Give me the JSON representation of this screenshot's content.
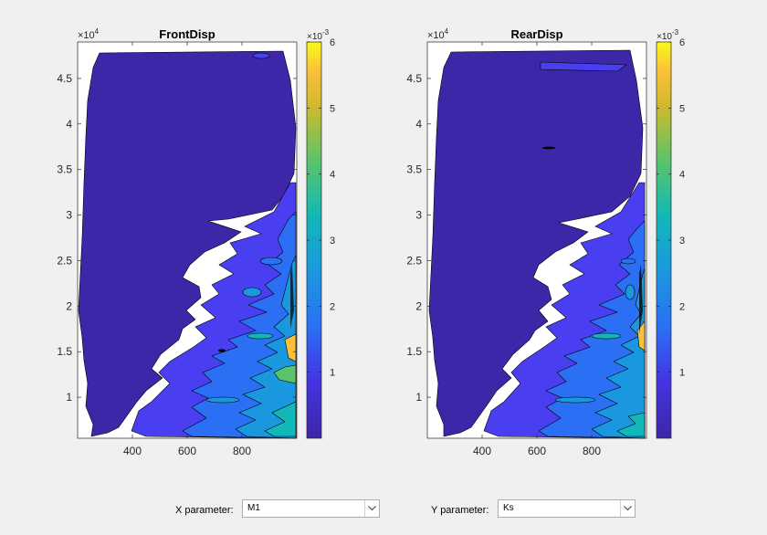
{
  "controls": {
    "x_param_label": "X parameter:",
    "x_param_value": "M1",
    "y_param_label": "Y parameter:",
    "y_param_value": "Ks"
  },
  "chart_data": [
    {
      "type": "filled-contour",
      "title": "FrontDisp",
      "xlim": [
        200,
        1000
      ],
      "ylim": [
        5500,
        49000
      ],
      "x_ticks": [
        400,
        600,
        800
      ],
      "y_ticks": [
        10000,
        15000,
        20000,
        25000,
        30000,
        35000,
        40000,
        45000
      ],
      "y_tick_labels": [
        "1",
        "1.5",
        "2",
        "2.5",
        "3",
        "3.5",
        "4",
        "4.5"
      ],
      "y_exponent": "×10^4",
      "colorbar": {
        "range": [
          0,
          0.006
        ],
        "ticks": [
          0.001,
          0.002,
          0.003,
          0.004,
          0.005,
          0.006
        ],
        "tick_labels": [
          "1",
          "2",
          "3",
          "4",
          "5",
          "6"
        ],
        "exponent": "×10^-3",
        "colormap": "parula"
      }
    },
    {
      "type": "filled-contour",
      "title": "RearDisp",
      "xlim": [
        200,
        1000
      ],
      "ylim": [
        5500,
        49000
      ],
      "x_ticks": [
        400,
        600,
        800
      ],
      "y_ticks": [
        10000,
        15000,
        20000,
        25000,
        30000,
        35000,
        40000,
        45000
      ],
      "y_tick_labels": [
        "1",
        "1.5",
        "2",
        "2.5",
        "3",
        "3.5",
        "4",
        "4.5"
      ],
      "y_exponent": "×10^4",
      "colorbar": {
        "range": [
          0,
          0.006
        ],
        "ticks": [
          0.001,
          0.002,
          0.003,
          0.004,
          0.005,
          0.006
        ],
        "tick_labels": [
          "1",
          "2",
          "3",
          "4",
          "5",
          "6"
        ],
        "exponent": "×10^-3",
        "colormap": "parula"
      }
    }
  ]
}
